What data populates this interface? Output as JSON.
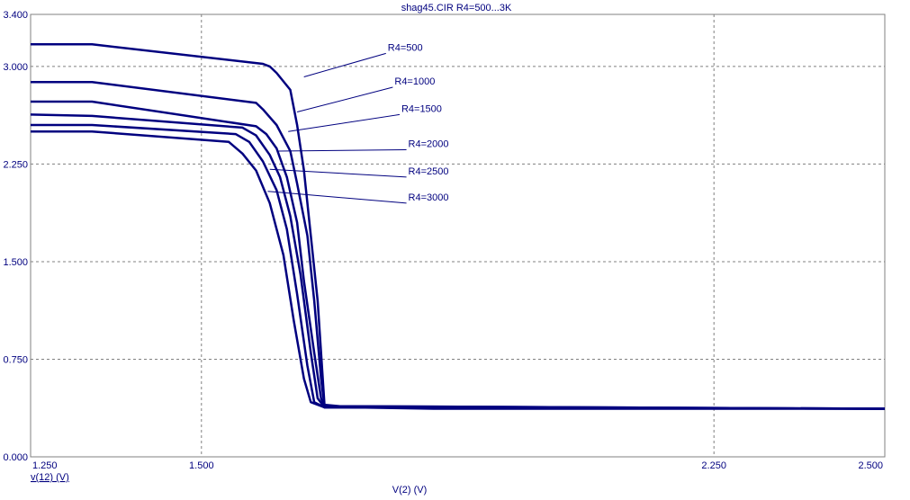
{
  "chart_data": {
    "type": "line",
    "title": "shag45.CIR R4=500...3K",
    "xlabel": "V(2) (V)",
    "ylabel": "v(12) (V)",
    "xlim": [
      1.25,
      2.5
    ],
    "ylim": [
      0.0,
      3.4
    ],
    "x_ticks": [
      "1.250",
      "1.500",
      "2.250",
      "2.500"
    ],
    "x_tick_values": [
      1.25,
      1.5,
      2.25,
      2.5
    ],
    "y_ticks": [
      "0.000",
      "0.750",
      "1.500",
      "2.250",
      "3.000",
      "3.400"
    ],
    "y_tick_values": [
      0.0,
      0.75,
      1.5,
      2.25,
      3.0,
      3.4
    ],
    "grid": true,
    "line_color": "#00007f",
    "series": [
      {
        "name": "R4=500",
        "x": [
          1.25,
          1.34,
          1.59,
          1.6,
          1.61,
          1.63,
          1.64,
          1.65,
          1.66,
          1.67,
          1.68,
          1.72,
          1.84,
          2.0,
          2.5
        ],
        "y": [
          3.17,
          3.17,
          3.02,
          3.0,
          2.95,
          2.82,
          2.55,
          2.2,
          1.7,
          1.2,
          0.4,
          0.38,
          0.37,
          0.37,
          0.37
        ]
      },
      {
        "name": "R4=1000",
        "x": [
          1.25,
          1.34,
          1.58,
          1.59,
          1.61,
          1.63,
          1.64,
          1.655,
          1.665,
          1.675,
          1.68,
          2.5
        ],
        "y": [
          2.88,
          2.88,
          2.72,
          2.67,
          2.55,
          2.35,
          2.1,
          1.7,
          1.2,
          0.6,
          0.39,
          0.37
        ]
      },
      {
        "name": "R4=1500",
        "x": [
          1.25,
          1.34,
          1.58,
          1.595,
          1.61,
          1.625,
          1.64,
          1.65,
          1.665,
          1.675,
          1.68,
          2.5
        ],
        "y": [
          2.73,
          2.73,
          2.54,
          2.48,
          2.37,
          2.15,
          1.8,
          1.35,
          0.8,
          0.45,
          0.39,
          0.37
        ]
      },
      {
        "name": "R4=2000",
        "x": [
          1.25,
          1.34,
          1.56,
          1.58,
          1.6,
          1.615,
          1.63,
          1.645,
          1.66,
          1.67,
          1.68,
          2.5
        ],
        "y": [
          2.63,
          2.62,
          2.53,
          2.47,
          2.32,
          2.15,
          1.85,
          1.4,
          0.8,
          0.45,
          0.38,
          0.37
        ]
      },
      {
        "name": "R4=2500",
        "x": [
          1.25,
          1.34,
          1.55,
          1.57,
          1.59,
          1.61,
          1.625,
          1.64,
          1.655,
          1.665,
          1.68,
          2.5
        ],
        "y": [
          2.55,
          2.55,
          2.48,
          2.42,
          2.27,
          2.05,
          1.75,
          1.25,
          0.7,
          0.42,
          0.38,
          0.37
        ]
      },
      {
        "name": "R4=3000",
        "x": [
          1.25,
          1.34,
          1.54,
          1.56,
          1.58,
          1.6,
          1.62,
          1.635,
          1.65,
          1.66,
          1.68,
          2.5
        ],
        "y": [
          2.5,
          2.5,
          2.42,
          2.33,
          2.2,
          1.95,
          1.55,
          1.05,
          0.6,
          0.42,
          0.38,
          0.37
        ]
      }
    ],
    "annotations": [
      {
        "text": "R4=500",
        "point": [
          1.65,
          2.92
        ],
        "label_at": [
          1.77,
          3.1
        ]
      },
      {
        "text": "R4=1000",
        "point": [
          1.64,
          2.65
        ],
        "label_at": [
          1.78,
          2.84
        ]
      },
      {
        "text": "R4=1500",
        "point": [
          1.627,
          2.5
        ],
        "label_at": [
          1.79,
          2.63
        ]
      },
      {
        "text": "R4=2000",
        "point": [
          1.613,
          2.35
        ],
        "label_at": [
          1.8,
          2.36
        ]
      },
      {
        "text": "R4=2500",
        "point": [
          1.6,
          2.21
        ],
        "label_at": [
          1.8,
          2.15
        ]
      },
      {
        "text": "R4=3000",
        "point": [
          1.597,
          2.04
        ],
        "label_at": [
          1.8,
          1.95
        ]
      }
    ]
  }
}
